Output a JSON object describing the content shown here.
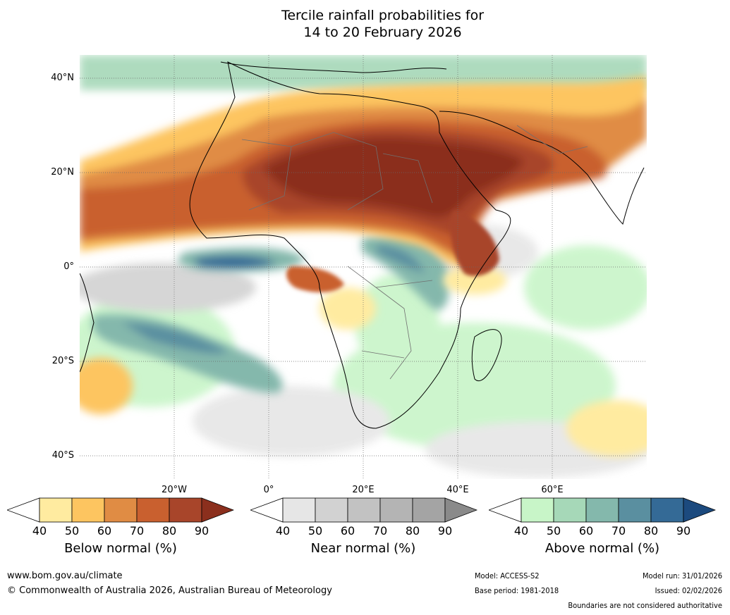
{
  "title": {
    "line1": "Tercile rainfall probabilities for",
    "line2": "14 to 20 February 2026"
  },
  "map": {
    "lat_labels": [
      "40°N",
      "20°N",
      "0°",
      "20°S",
      "40°S"
    ],
    "lon_labels": [
      "20°W",
      "0°",
      "20°E",
      "40°E",
      "60°E"
    ]
  },
  "colorbars": [
    {
      "label": "Below normal (%)",
      "ticks": [
        "40",
        "50",
        "60",
        "70",
        "80",
        "90"
      ],
      "colors": [
        "#ffeba0",
        "#fdc560",
        "#e08c44",
        "#c9602f",
        "#a8452a",
        "#8b2f1d"
      ]
    },
    {
      "label": "Near normal (%)",
      "ticks": [
        "40",
        "50",
        "60",
        "70",
        "80",
        "90"
      ],
      "colors": [
        "#e6e6e6",
        "#d2d2d2",
        "#c2c2c2",
        "#b4b4b4",
        "#a4a4a4",
        "#8a8a8a"
      ]
    },
    {
      "label": "Above normal (%)",
      "ticks": [
        "40",
        "50",
        "60",
        "70",
        "80",
        "90"
      ],
      "colors": [
        "#c8f5c8",
        "#a6d8b8",
        "#84b8ac",
        "#5a8fa0",
        "#346a96",
        "#1c4a7e"
      ]
    }
  ],
  "footer": {
    "url": "www.bom.gov.au/climate",
    "copyright": "© Commonwealth of Australia 2026, Australian Bureau of Meteorology",
    "model": "Model: ACCESS-S2",
    "base_period": "Base period: 1981-2018",
    "model_run": "Model run: 31/01/2026",
    "issued": "Issued: 02/02/2026",
    "boundaries": "Boundaries are not considered authoritative"
  }
}
